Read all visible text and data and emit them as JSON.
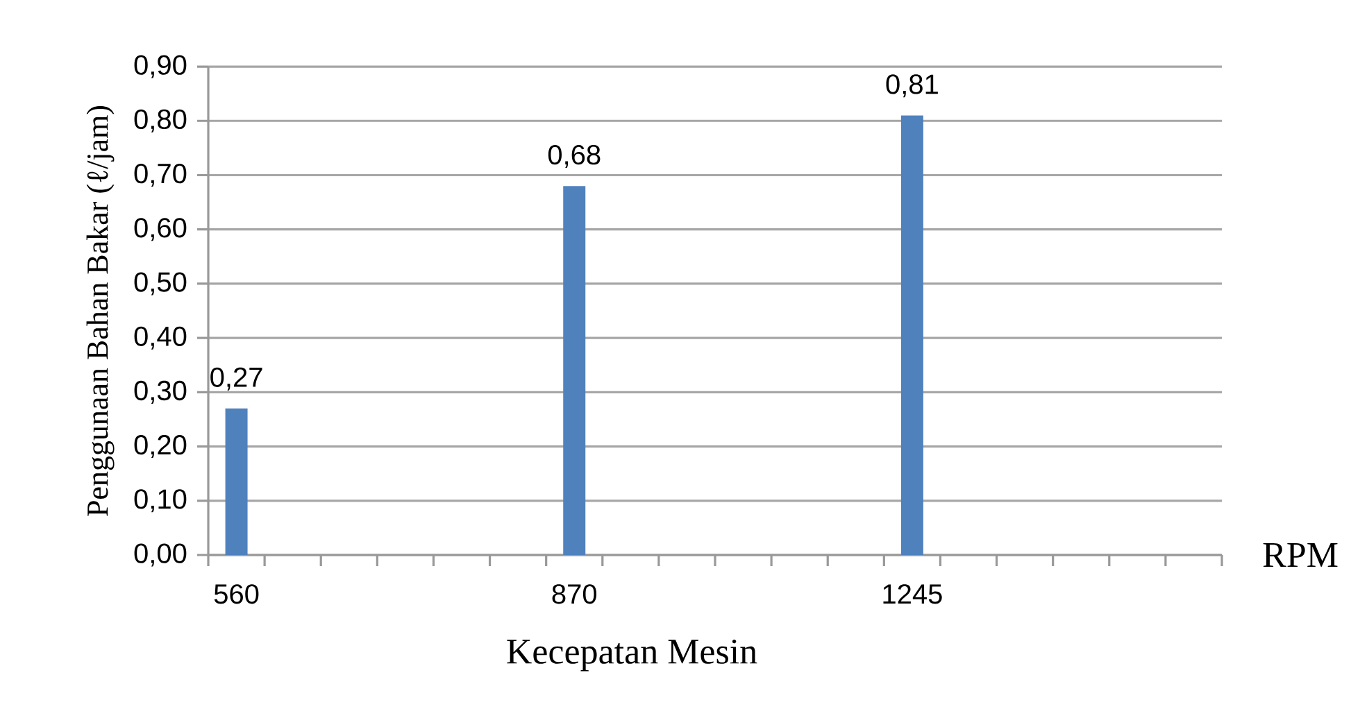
{
  "chart_data": {
    "type": "bar",
    "xlabel": "Kecepatan Mesin",
    "ylabel": "Penggunaan Bahan Bakar (ℓ/jam)",
    "annotations": [
      "RPM"
    ],
    "categories": [
      "560",
      null,
      null,
      null,
      null,
      null,
      "870",
      null,
      null,
      null,
      null,
      null,
      "1245",
      null,
      null,
      null,
      null,
      null
    ],
    "values": [
      0.27,
      null,
      null,
      null,
      null,
      null,
      0.68,
      null,
      null,
      null,
      null,
      null,
      0.81,
      null,
      null,
      null,
      null,
      null
    ],
    "value_labels": [
      "0,27",
      null,
      null,
      null,
      null,
      null,
      "0,68",
      null,
      null,
      null,
      null,
      null,
      "0,81",
      null,
      null,
      null,
      null,
      null
    ],
    "color": "#4f81bd",
    "ylim": [
      0,
      0.9
    ],
    "yticks": [
      {
        "value": 0,
        "label": "0,00"
      },
      {
        "value": 0.1,
        "label": "0,10"
      },
      {
        "value": 0.2,
        "label": "0,20"
      },
      {
        "value": 0.3,
        "label": "0,30"
      },
      {
        "value": 0.4,
        "label": "0,40"
      },
      {
        "value": 0.5,
        "label": "0,50"
      },
      {
        "value": 0.6,
        "label": "0,60"
      },
      {
        "value": 0.7,
        "label": "0,70"
      },
      {
        "value": 0.8,
        "label": "0,80"
      },
      {
        "value": 0.9,
        "label": "0,90"
      }
    ],
    "grid": "y"
  }
}
